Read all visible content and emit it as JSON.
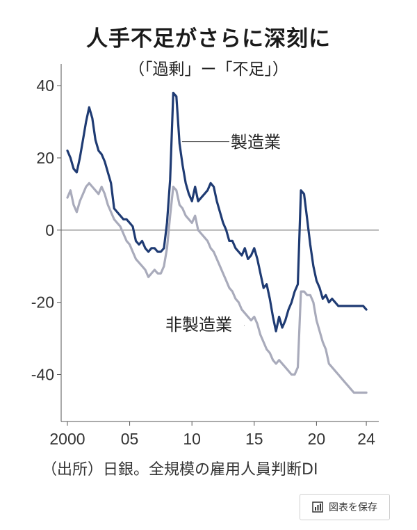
{
  "title": "人手不足がさらに深刻に",
  "subtitle": "（「過剰」ー「不足」）",
  "source": "（出所）日銀。全規模の雇用人員判断DI",
  "save_button": {
    "label": "図表を保存",
    "icon": "bar-chart-icon"
  },
  "colors": {
    "manufacturing": "#1f3b73",
    "non_manufacturing": "#a9abbb",
    "axis": "#555555",
    "zero_line": "#666666"
  },
  "chart_data": {
    "type": "line",
    "title": "人手不足がさらに深刻に",
    "subtitle": "（「過剰」ー「不足」）",
    "xlabel": "",
    "ylabel": "",
    "xlim": [
      1999.5,
      2025
    ],
    "ylim": [
      -53,
      46
    ],
    "x_ticks": [
      2000,
      2005,
      2010,
      2015,
      2020,
      2024
    ],
    "x_tick_labels": [
      "2000",
      "05",
      "10",
      "15",
      "20",
      "24"
    ],
    "y_ticks": [
      40,
      20,
      0,
      -20,
      -40
    ],
    "y_tick_labels": [
      "40",
      "20",
      "0",
      "-20",
      "-40"
    ],
    "zero_line": true,
    "series": [
      {
        "name": "製造業",
        "x": [
          2000.0,
          2000.25,
          2000.5,
          2000.75,
          2001.0,
          2001.25,
          2001.5,
          2001.75,
          2002.0,
          2002.25,
          2002.5,
          2002.75,
          2003.0,
          2003.25,
          2003.5,
          2003.75,
          2004.0,
          2004.25,
          2004.5,
          2004.75,
          2005.0,
          2005.25,
          2005.5,
          2005.75,
          2006.0,
          2006.25,
          2006.5,
          2006.75,
          2007.0,
          2007.25,
          2007.5,
          2007.75,
          2008.0,
          2008.25,
          2008.5,
          2008.75,
          2009.0,
          2009.25,
          2009.5,
          2009.75,
          2010.0,
          2010.25,
          2010.5,
          2010.75,
          2011.0,
          2011.25,
          2011.5,
          2011.75,
          2012.0,
          2012.25,
          2012.5,
          2012.75,
          2013.0,
          2013.25,
          2013.5,
          2013.75,
          2014.0,
          2014.25,
          2014.5,
          2014.75,
          2015.0,
          2015.25,
          2015.5,
          2015.75,
          2016.0,
          2016.25,
          2016.5,
          2016.75,
          2017.0,
          2017.25,
          2017.5,
          2017.75,
          2018.0,
          2018.25,
          2018.5,
          2018.75,
          2019.0,
          2019.25,
          2019.5,
          2019.75,
          2020.0,
          2020.25,
          2020.5,
          2020.75,
          2021.0,
          2021.25,
          2021.5,
          2021.75,
          2022.0,
          2022.25,
          2022.5,
          2022.75,
          2023.0,
          2023.25,
          2023.5,
          2023.75,
          2024.0
        ],
        "values": [
          22,
          20,
          17,
          16,
          20,
          25,
          30,
          34,
          31,
          25,
          22,
          21,
          19,
          16,
          13,
          6,
          5,
          4,
          3,
          3,
          2,
          1,
          -3,
          -4,
          -3,
          -5,
          -6,
          -5,
          -5,
          -6,
          -6,
          -5,
          2,
          14,
          38,
          37,
          24,
          18,
          13,
          10,
          8,
          12,
          8,
          9,
          10,
          11,
          13,
          12,
          8,
          5,
          2,
          0,
          -3,
          -3,
          -5,
          -6,
          -7,
          -5,
          -8,
          -7,
          -5,
          -8,
          -12,
          -16,
          -15,
          -19,
          -24,
          -28,
          -24,
          -27,
          -25,
          -22,
          -20,
          -17,
          -15,
          11,
          10,
          3,
          -4,
          -10,
          -14,
          -16,
          -19,
          -18,
          -20,
          -19,
          -20,
          -21,
          -21,
          -21,
          -21,
          -21,
          -21,
          -21,
          -21,
          -21,
          -22
        ]
      },
      {
        "name": "非製造業",
        "x": [
          2000.0,
          2000.25,
          2000.5,
          2000.75,
          2001.0,
          2001.25,
          2001.5,
          2001.75,
          2002.0,
          2002.25,
          2002.5,
          2002.75,
          2003.0,
          2003.25,
          2003.5,
          2003.75,
          2004.0,
          2004.25,
          2004.5,
          2004.75,
          2005.0,
          2005.25,
          2005.5,
          2005.75,
          2006.0,
          2006.25,
          2006.5,
          2006.75,
          2007.0,
          2007.25,
          2007.5,
          2007.75,
          2008.0,
          2008.25,
          2008.5,
          2008.75,
          2009.0,
          2009.25,
          2009.5,
          2009.75,
          2010.0,
          2010.25,
          2010.5,
          2010.75,
          2011.0,
          2011.25,
          2011.5,
          2011.75,
          2012.0,
          2012.25,
          2012.5,
          2012.75,
          2013.0,
          2013.25,
          2013.5,
          2013.75,
          2014.0,
          2014.25,
          2014.5,
          2014.75,
          2015.0,
          2015.25,
          2015.5,
          2015.75,
          2016.0,
          2016.25,
          2016.5,
          2016.75,
          2017.0,
          2017.25,
          2017.5,
          2017.75,
          2018.0,
          2018.25,
          2018.5,
          2018.75,
          2019.0,
          2019.25,
          2019.5,
          2019.75,
          2020.0,
          2020.25,
          2020.5,
          2020.75,
          2021.0,
          2021.25,
          2021.5,
          2021.75,
          2022.0,
          2022.25,
          2022.5,
          2022.75,
          2023.0,
          2023.25,
          2023.5,
          2023.75,
          2024.0
        ],
        "values": [
          9,
          11,
          7,
          5,
          8,
          10,
          12,
          13,
          12,
          11,
          10,
          12,
          10,
          7,
          5,
          3,
          2,
          1,
          -1,
          -3,
          -4,
          -6,
          -8,
          -9,
          -10,
          -11,
          -13,
          -12,
          -11,
          -12,
          -12,
          -10,
          -5,
          4,
          12,
          11,
          7,
          6,
          4,
          3,
          2,
          4,
          0,
          -1,
          -2,
          -3,
          -5,
          -6,
          -8,
          -10,
          -12,
          -14,
          -16,
          -17,
          -19,
          -20,
          -22,
          -23,
          -24,
          -25,
          -24,
          -26,
          -29,
          -31,
          -33,
          -34,
          -36,
          -37,
          -36,
          -37,
          -38,
          -39,
          -40,
          -40,
          -38,
          -17,
          -17,
          -18,
          -18,
          -20,
          -25,
          -28,
          -31,
          -33,
          -37,
          -38,
          -39,
          -40,
          -41,
          -42,
          -43,
          -44,
          -45,
          -45,
          -45,
          -45,
          -45
        ]
      }
    ],
    "annotations": [
      {
        "text": "製造業",
        "series": "製造業"
      },
      {
        "text": "非製造業",
        "series": "非製造業"
      }
    ]
  }
}
